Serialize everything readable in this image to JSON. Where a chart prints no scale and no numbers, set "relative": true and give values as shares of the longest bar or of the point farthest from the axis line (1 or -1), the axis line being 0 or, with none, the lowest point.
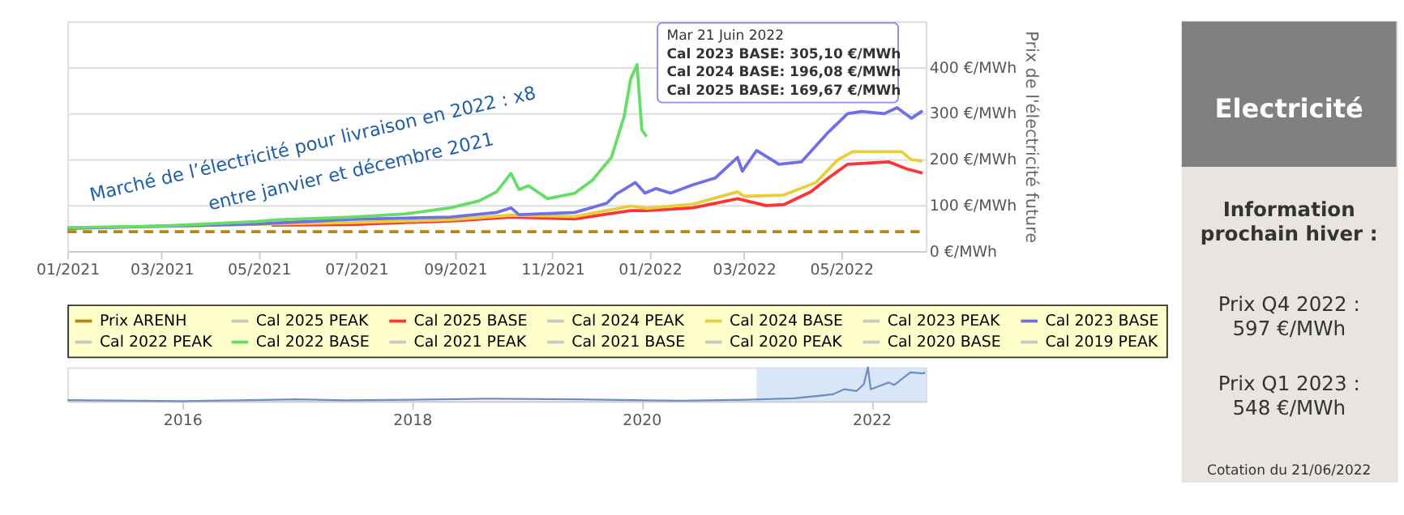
{
  "chart_data": [
    {
      "type": "line",
      "ylabel": "Prix de l'électricité future",
      "xlim": [
        "2021-01-01",
        "2022-06-23"
      ],
      "xticks": [
        {
          "value": "2021-01-01",
          "label": "01/2021"
        },
        {
          "value": "2021-03-01",
          "label": "03/2021"
        },
        {
          "value": "2021-05-01",
          "label": "05/2021"
        },
        {
          "value": "2021-07-01",
          "label": "07/2021"
        },
        {
          "value": "2021-09-01",
          "label": "09/2021"
        },
        {
          "value": "2021-11-01",
          "label": "11/2021"
        },
        {
          "value": "2022-01-01",
          "label": "01/2022"
        },
        {
          "value": "2022-03-01",
          "label": "03/2022"
        },
        {
          "value": "2022-05-01",
          "label": "05/2022"
        }
      ],
      "ylim": [
        0,
        500
      ],
      "yticks": [
        {
          "value": 0,
          "label": "0 €/MWh"
        },
        {
          "value": 100,
          "label": "100 €/MWh"
        },
        {
          "value": 200,
          "label": "200 €/MWh"
        },
        {
          "value": 300,
          "label": "300 €/MWh"
        },
        {
          "value": 400,
          "label": "400 €/MWh"
        },
        {
          "value": 500,
          "label": null
        }
      ],
      "grid": "y",
      "legend": "bottom",
      "marker": "none",
      "annotations": [
        "Marché de l’électricité pour livraison en 2022 : x8",
        "entre janvier et décembre 2021",
        "Mar 21 Juin 2022",
        "Cal 2023 BASE: 305,10 €/MWh",
        "Cal 2024 BASE: 196,08 €/MWh",
        "Cal 2025 BASE: 169,67 €/MWh"
      ],
      "series": [
        {
          "name": "Prix ARENH",
          "color": "#b8860b",
          "line_style": "dashed",
          "x": [
            "2021-01-01",
            "2022-06-23"
          ],
          "values": [
            42,
            42
          ]
        },
        {
          "name": "Cal 2025 PEAK",
          "color": "#c8c8c8"
        },
        {
          "name": "Cal 2025 BASE",
          "color": "#ff3333",
          "x": [
            "2021-05-09",
            "2021-07-01",
            "2021-09-01",
            "2021-10-06",
            "2021-11-15",
            "2021-12-20",
            "2021-12-30",
            "2022-01-28",
            "2022-02-25",
            "2022-03-15",
            "2022-03-26",
            "2022-04-12",
            "2022-04-23",
            "2022-05-05",
            "2022-05-31",
            "2022-06-11",
            "2022-06-21"
          ],
          "values": [
            56,
            58,
            66,
            74,
            70,
            88,
            88,
            94,
            114,
            99,
            101,
            129,
            159,
            189,
            194,
            179,
            169.67
          ]
        },
        {
          "name": "Cal 2024 PEAK",
          "color": "#c8c8c8"
        },
        {
          "name": "Cal 2024 BASE",
          "color": "#e6cf3a",
          "x": [
            "2021-01-01",
            "2021-04-29",
            "2021-06-28",
            "2021-08-29",
            "2021-10-06",
            "2021-11-15",
            "2021-12-08",
            "2021-12-20",
            "2021-12-30",
            "2022-01-28",
            "2022-02-25",
            "2022-03-01",
            "2022-03-26",
            "2022-04-15",
            "2022-04-29",
            "2022-05-08",
            "2022-06-08",
            "2022-06-14",
            "2022-06-21"
          ],
          "values": [
            50,
            58,
            62,
            68,
            78,
            75,
            90,
            98,
            93,
            102,
            129,
            119,
            122,
            149,
            199,
            216,
            216,
            199,
            196.08
          ]
        },
        {
          "name": "Cal 2023 PEAK",
          "color": "#c8c8c8"
        },
        {
          "name": "Cal 2023 BASE",
          "color": "#6f6fe8",
          "x": [
            "2021-01-01",
            "2021-04-29",
            "2021-06-28",
            "2021-08-29",
            "2021-09-27",
            "2021-10-06",
            "2021-10-11",
            "2021-11-15",
            "2021-12-05",
            "2021-12-11",
            "2021-12-23",
            "2021-12-29",
            "2022-01-05",
            "2022-01-14",
            "2022-01-28",
            "2022-02-11",
            "2022-02-25",
            "2022-02-28",
            "2022-03-09",
            "2022-03-23",
            "2022-04-06",
            "2022-04-23",
            "2022-05-05",
            "2022-05-14",
            "2022-05-28",
            "2022-06-05",
            "2022-06-14",
            "2022-06-21"
          ],
          "values": [
            49,
            59,
            69,
            74,
            84,
            94,
            79,
            84,
            104,
            124,
            149,
            126,
            136,
            126,
            144,
            159,
            204,
            174,
            219,
            189,
            194,
            259,
            299,
            304,
            299,
            312,
            289,
            305.1
          ]
        },
        {
          "name": "Cal 2022 PEAK",
          "color": "#c8c8c8"
        },
        {
          "name": "Cal 2022 BASE",
          "color": "#66dd66",
          "x": [
            "2021-01-01",
            "2021-02-27",
            "2021-04-29",
            "2021-05-13",
            "2021-06-28",
            "2021-08-01",
            "2021-08-29",
            "2021-09-16",
            "2021-09-27",
            "2021-10-06",
            "2021-10-11",
            "2021-10-17",
            "2021-10-29",
            "2021-11-15",
            "2021-11-26",
            "2021-12-08",
            "2021-12-16",
            "2021-12-20",
            "2021-12-24",
            "2021-12-27",
            "2021-12-30"
          ],
          "values": [
            51,
            54,
            64,
            68,
            74,
            81,
            94,
            109,
            129,
            169,
            134,
            142,
            114,
            126,
            154,
            204,
            294,
            374,
            406,
            264,
            249
          ]
        },
        {
          "name": "Cal 2021 PEAK",
          "color": "#c8c8c8"
        },
        {
          "name": "Cal 2021 BASE",
          "color": "#c8c8c8"
        },
        {
          "name": "Cal 2020 PEAK",
          "color": "#c8c8c8"
        },
        {
          "name": "Cal 2020 BASE",
          "color": "#c8c8c8"
        },
        {
          "name": "Cal 2019 PEAK",
          "color": "#c8c8c8"
        }
      ]
    },
    {
      "type": "line",
      "relative": true,
      "xlim": [
        "2015-01-01",
        "2022-06-23"
      ],
      "xticks": [
        "2016",
        "2018",
        "2020",
        "2022"
      ],
      "bands": [
        {
          "axis": "x",
          "from": "2021-01-01",
          "to": "2022-06-23",
          "color": "#cfe0f5"
        }
      ],
      "series": [
        {
          "color": "#6f8fc0",
          "x": [
            "2015-01-01",
            "2016-01-01",
            "2016-07-01",
            "2017-01-01",
            "2017-06-01",
            "2018-01-01",
            "2018-09-01",
            "2019-06-01",
            "2020-05-01",
            "2020-12-01",
            "2021-05-01",
            "2021-09-01",
            "2021-10-06",
            "2021-11-15",
            "2021-12-08",
            "2021-12-21",
            "2021-12-30",
            "2022-02-25",
            "2022-03-15",
            "2022-05-05",
            "2022-06-14",
            "2022-06-21"
          ],
          "values": [
            0.03,
            0,
            0.02,
            0.05,
            0.02,
            0.04,
            0.07,
            0.05,
            0.01,
            0.04,
            0.08,
            0.2,
            0.35,
            0.3,
            0.5,
            1,
            0.35,
            0.55,
            0.48,
            0.85,
            0.82,
            0.85
          ]
        }
      ]
    },
    {
      "type": "other",
      "title": "Electricité",
      "annotations": [
        "Information",
        "prochain hiver :",
        "Prix Q4 2022 :",
        "597 €/MWh",
        "Prix Q1 2023 :",
        "548 €/MWh",
        "Cotation du 21/06/2022"
      ]
    }
  ]
}
